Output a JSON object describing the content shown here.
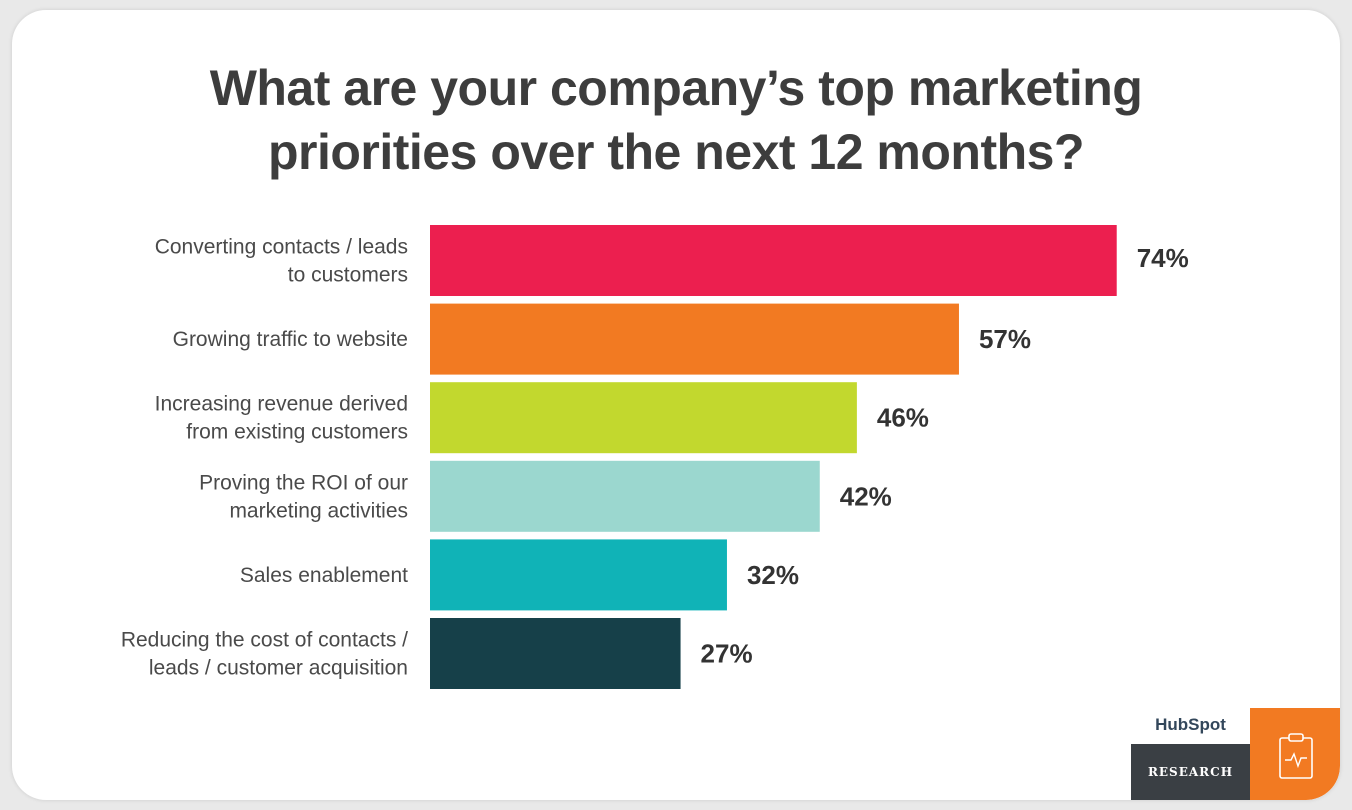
{
  "chart_data": {
    "type": "bar",
    "orientation": "horizontal",
    "title": [
      "What are your company’s top marketing",
      "priorities over the next 12 months?"
    ],
    "categories": [
      [
        "Converting contacts / leads",
        "to customers"
      ],
      [
        "Growing traffic to website"
      ],
      [
        "Increasing revenue derived",
        "from existing customers"
      ],
      [
        "Proving the ROI of our",
        "marketing activities"
      ],
      [
        "Sales enablement"
      ],
      [
        "Reducing the cost of contacts /",
        "leads / customer acquisition"
      ]
    ],
    "values": [
      74,
      57,
      46,
      42,
      32,
      27
    ],
    "value_labels": [
      "74%",
      "57%",
      "46%",
      "42%",
      "32%",
      "27%"
    ],
    "colors": [
      "#ec1f4f",
      "#f27a22",
      "#c2d82e",
      "#9bd7cf",
      "#10b3b7",
      "#164049"
    ],
    "xlim": [
      0,
      100
    ],
    "grid": false,
    "legend": "none"
  },
  "brand": {
    "logo": "HubSpot",
    "tagline": "RESEARCH",
    "icon": "clipboard-pulse-icon",
    "accent": "#f27a22"
  }
}
